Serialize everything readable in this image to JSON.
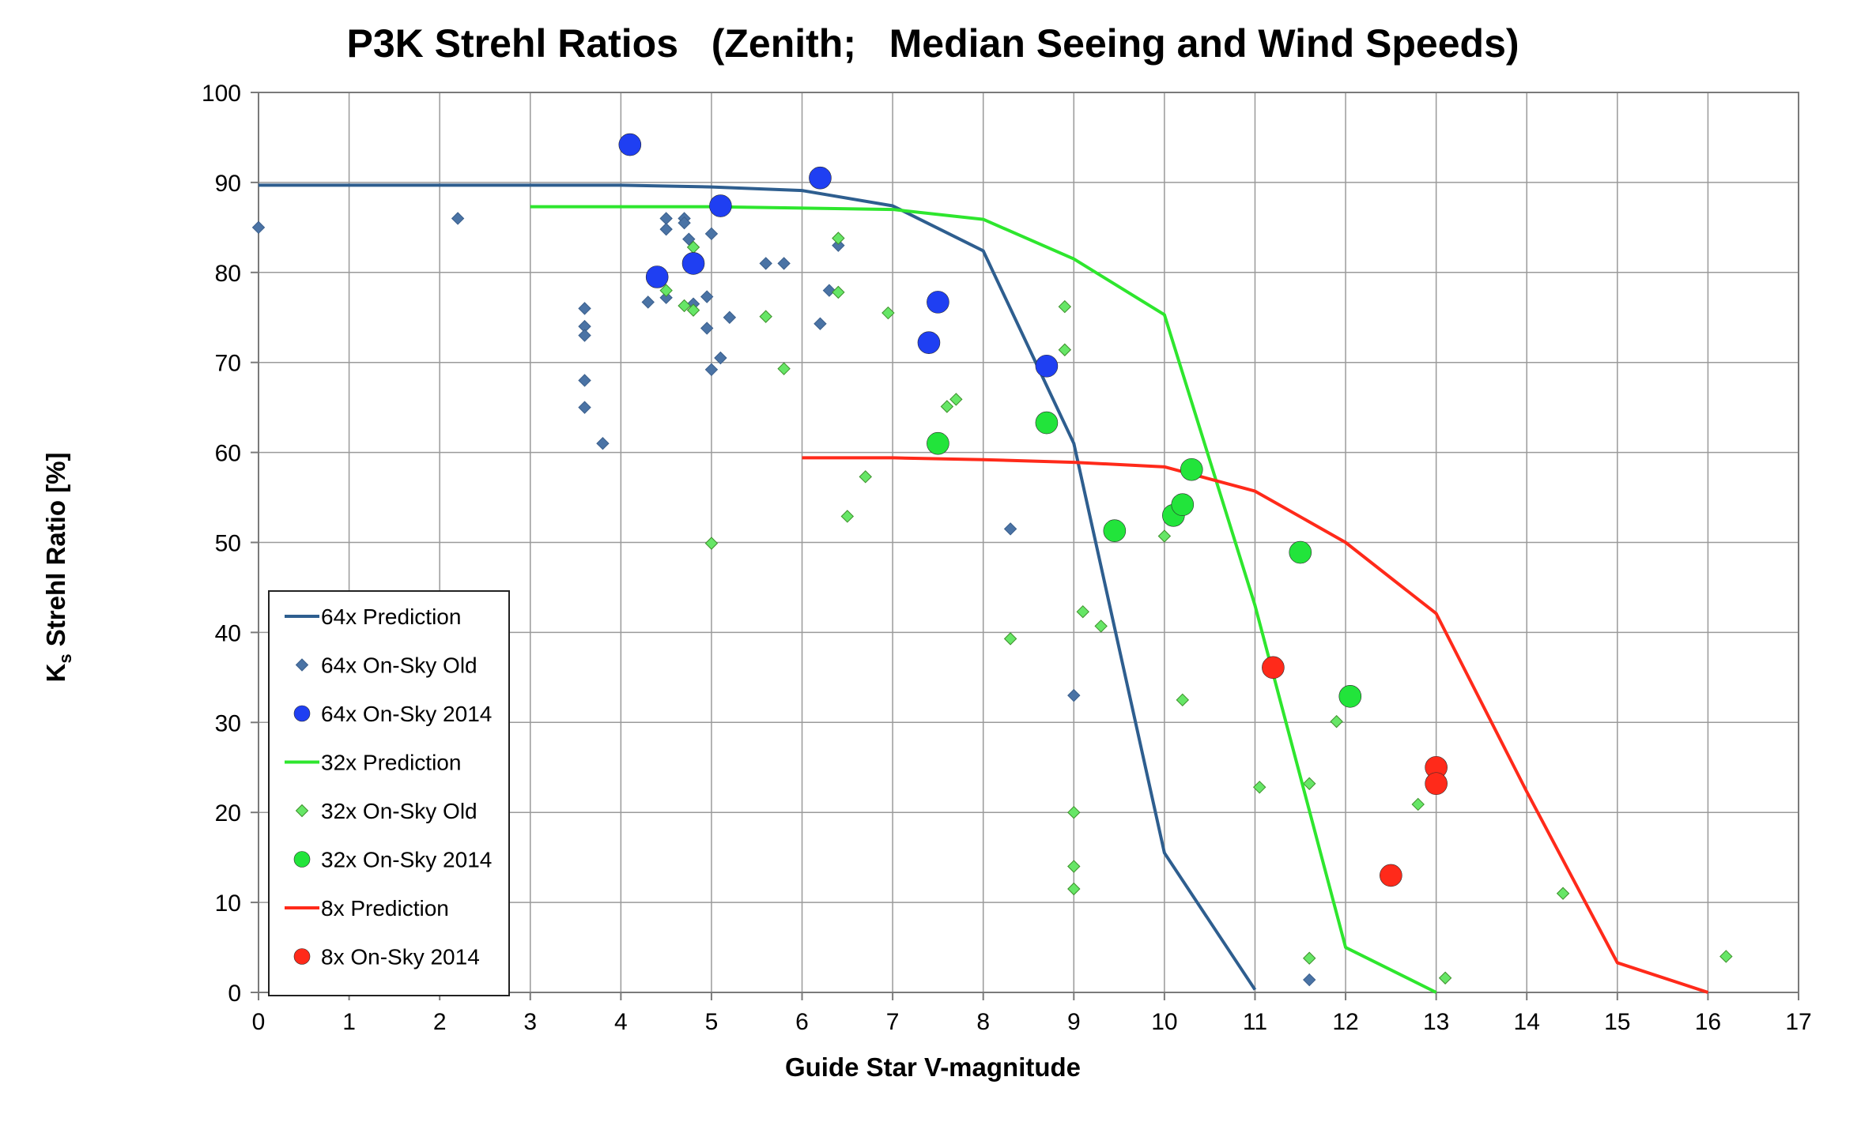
{
  "chart_data": {
    "type": "scatter",
    "title": "P3K Strehl Ratios   (Zenith;   Median Seeing and Wind Speeds)",
    "xlabel": "Guide Star V-magnitude",
    "ylabel_main": "K",
    "ylabel_sub": "s",
    "ylabel_rest": " Strehl Ratio [%]",
    "xlim": [
      0,
      17
    ],
    "ylim": [
      0,
      100
    ],
    "x_ticks": [
      "0",
      "1",
      "2",
      "3",
      "4",
      "5",
      "6",
      "7",
      "8",
      "9",
      "10",
      "11",
      "12",
      "13",
      "14",
      "15",
      "16",
      "17"
    ],
    "y_ticks": [
      "0",
      "10",
      "20",
      "30",
      "40",
      "50",
      "60",
      "70",
      "80",
      "90",
      "100"
    ],
    "grid": true,
    "legend_position": "bottom-left",
    "series": [
      {
        "name": "64x Prediction",
        "kind": "line",
        "color": "#2e5e8f",
        "points": [
          [
            0,
            89.7
          ],
          [
            2,
            89.7
          ],
          [
            4,
            89.7
          ],
          [
            5,
            89.5
          ],
          [
            6,
            89.1
          ],
          [
            7,
            87.4
          ],
          [
            8,
            82.4
          ],
          [
            9,
            61
          ],
          [
            10,
            15.5
          ],
          [
            11,
            0.3
          ]
        ]
      },
      {
        "name": "64x On-Sky Old",
        "kind": "diamond",
        "color": "#4a73a5",
        "points": [
          [
            0,
            85
          ],
          [
            2.2,
            86
          ],
          [
            3.6,
            76
          ],
          [
            3.6,
            74
          ],
          [
            3.6,
            73
          ],
          [
            3.6,
            68
          ],
          [
            3.6,
            65
          ],
          [
            3.8,
            61
          ],
          [
            4.3,
            76.7
          ],
          [
            4.5,
            86
          ],
          [
            4.5,
            84.8
          ],
          [
            4.5,
            77.2
          ],
          [
            4.7,
            86
          ],
          [
            4.7,
            85.5
          ],
          [
            4.75,
            83.7
          ],
          [
            4.8,
            76.5
          ],
          [
            4.95,
            77.3
          ],
          [
            4.95,
            73.8
          ],
          [
            5.0,
            84.3
          ],
          [
            5.0,
            69.2
          ],
          [
            5.1,
            70.5
          ],
          [
            5.2,
            75
          ],
          [
            5.6,
            81
          ],
          [
            5.8,
            81
          ],
          [
            6.2,
            74.3
          ],
          [
            6.3,
            78
          ],
          [
            6.4,
            83
          ],
          [
            8.3,
            51.5
          ],
          [
            9.0,
            33
          ],
          [
            11.6,
            1.4
          ]
        ]
      },
      {
        "name": "64x On-Sky 2014",
        "kind": "circle",
        "color": "#1f3ff2",
        "points": [
          [
            4.1,
            94.2
          ],
          [
            4.4,
            79.5
          ],
          [
            4.8,
            81
          ],
          [
            5.1,
            87.4
          ],
          [
            6.2,
            90.5
          ],
          [
            7.4,
            72.2
          ],
          [
            7.5,
            76.7
          ],
          [
            8.7,
            69.6
          ]
        ]
      },
      {
        "name": "32x Prediction",
        "kind": "line",
        "color": "#2ee62e",
        "points": [
          [
            3,
            87.3
          ],
          [
            5,
            87.3
          ],
          [
            7,
            87
          ],
          [
            8,
            85.9
          ],
          [
            9,
            81.5
          ],
          [
            10,
            75.3
          ],
          [
            11,
            43
          ],
          [
            12,
            5
          ],
          [
            13,
            0
          ]
        ]
      },
      {
        "name": "32x On-Sky Old",
        "kind": "diamond",
        "color": "#66e666",
        "points": [
          [
            4.5,
            78
          ],
          [
            4.7,
            76.3
          ],
          [
            4.8,
            75.8
          ],
          [
            4.8,
            82.8
          ],
          [
            5.0,
            49.9
          ],
          [
            5.6,
            75.1
          ],
          [
            5.8,
            69.3
          ],
          [
            6.4,
            83.8
          ],
          [
            6.4,
            77.8
          ],
          [
            6.5,
            52.9
          ],
          [
            6.7,
            57.3
          ],
          [
            6.95,
            75.5
          ],
          [
            7.6,
            65.1
          ],
          [
            7.7,
            65.9
          ],
          [
            8.3,
            39.3
          ],
          [
            8.9,
            76.2
          ],
          [
            8.9,
            71.4
          ],
          [
            9.0,
            20
          ],
          [
            9.0,
            14
          ],
          [
            9.0,
            11.5
          ],
          [
            9.1,
            42.3
          ],
          [
            9.3,
            40.7
          ],
          [
            10.0,
            50.7
          ],
          [
            10.2,
            32.5
          ],
          [
            11.05,
            22.8
          ],
          [
            11.6,
            23.2
          ],
          [
            11.6,
            3.8
          ],
          [
            11.9,
            30.1
          ],
          [
            12.8,
            20.9
          ],
          [
            13.1,
            1.6
          ],
          [
            14.4,
            11
          ],
          [
            16.2,
            4
          ]
        ]
      },
      {
        "name": "32x On-Sky 2014",
        "kind": "circle",
        "color": "#22e43b",
        "points": [
          [
            7.5,
            61
          ],
          [
            8.7,
            63.3
          ],
          [
            9.45,
            51.3
          ],
          [
            10.1,
            53
          ],
          [
            10.2,
            54.2
          ],
          [
            10.3,
            58.1
          ],
          [
            11.5,
            48.9
          ],
          [
            12.05,
            32.9
          ]
        ]
      },
      {
        "name": "8x Prediction",
        "kind": "line",
        "color": "#ff2a1a",
        "points": [
          [
            6,
            59.4
          ],
          [
            7,
            59.4
          ],
          [
            8,
            59.2
          ],
          [
            9,
            58.9
          ],
          [
            10,
            58.4
          ],
          [
            11,
            55.7
          ],
          [
            12,
            50
          ],
          [
            13,
            42.1
          ],
          [
            14,
            22.3
          ],
          [
            15,
            3.3
          ],
          [
            16,
            0
          ]
        ]
      },
      {
        "name": "8x On-Sky 2014",
        "kind": "circle",
        "color": "#ff2a1a",
        "points": [
          [
            11.2,
            36.1
          ],
          [
            12.5,
            13
          ],
          [
            13.0,
            25
          ],
          [
            13.0,
            23.2
          ]
        ]
      }
    ]
  }
}
